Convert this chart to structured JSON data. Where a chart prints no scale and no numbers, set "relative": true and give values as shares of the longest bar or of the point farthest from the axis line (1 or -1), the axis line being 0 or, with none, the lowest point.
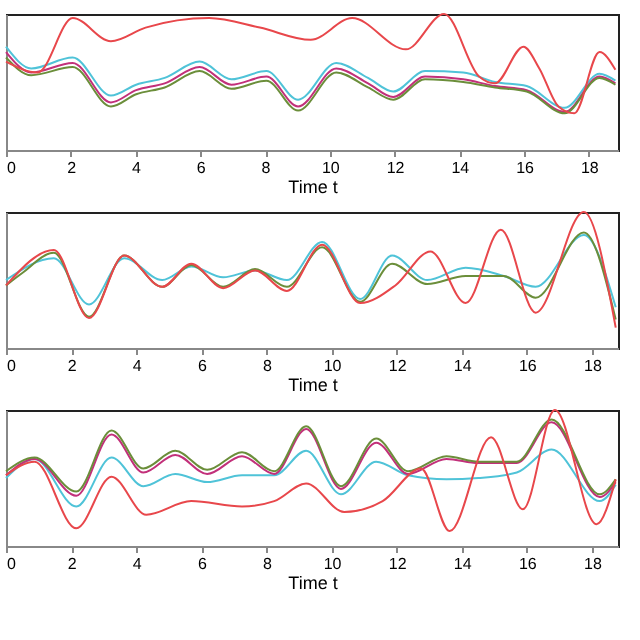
{
  "chart_data": [
    {
      "type": "line",
      "relative": true,
      "xlabel": "Time t",
      "xlim": [
        0,
        18.9
      ],
      "xticks": [
        0,
        2,
        4,
        6,
        8,
        10,
        12,
        14,
        16,
        18
      ],
      "grid": false,
      "legend": false,
      "series": [
        {
          "color": "#4fc3d8",
          "x": [
            0,
            0.78,
            2.06,
            3.24,
            4.02,
            4.9,
            5.98,
            6.96,
            8.04,
            9.02,
            10.2,
            11.18,
            11.96,
            12.94,
            14.12,
            15.1,
            16.08,
            17.25,
            18.33,
            18.82
          ],
          "values": [
            0.76,
            0.6,
            0.68,
            0.4,
            0.48,
            0.53,
            0.65,
            0.52,
            0.58,
            0.37,
            0.64,
            0.53,
            0.43,
            0.58,
            0.57,
            0.5,
            0.47,
            0.31,
            0.56,
            0.51
          ]
        },
        {
          "color": "#c2307a",
          "x": [
            0,
            0.78,
            2.06,
            3.24,
            4.02,
            4.9,
            5.98,
            6.96,
            8.04,
            9.02,
            10.2,
            11.18,
            11.96,
            12.94,
            14.12,
            15.1,
            16.08,
            17.25,
            18.33,
            18.82
          ],
          "values": [
            0.72,
            0.57,
            0.64,
            0.35,
            0.44,
            0.49,
            0.61,
            0.48,
            0.54,
            0.32,
            0.6,
            0.49,
            0.39,
            0.54,
            0.52,
            0.47,
            0.44,
            0.28,
            0.54,
            0.49
          ]
        },
        {
          "color": "#6b8e3a",
          "x": [
            0,
            0.78,
            2.06,
            3.24,
            4.02,
            4.9,
            5.98,
            6.96,
            8.04,
            9.02,
            10.2,
            11.18,
            11.96,
            12.94,
            14.12,
            15.1,
            16.08,
            17.25,
            18.33,
            18.82
          ],
          "values": [
            0.68,
            0.55,
            0.61,
            0.32,
            0.41,
            0.46,
            0.58,
            0.45,
            0.51,
            0.29,
            0.57,
            0.46,
            0.37,
            0.52,
            0.5,
            0.46,
            0.43,
            0.27,
            0.53,
            0.48
          ]
        },
        {
          "color": "#e8474b",
          "x": [
            0,
            0.98,
            2.06,
            3.24,
            4.31,
            6.27,
            7.84,
            9.41,
            10.69,
            12.35,
            13.53,
            14.61,
            15.1,
            15.98,
            16.47,
            17.06,
            17.55,
            18.33,
            18.82
          ],
          "values": [
            0.65,
            0.57,
            0.97,
            0.8,
            0.9,
            0.97,
            0.9,
            0.81,
            0.97,
            0.74,
            1.0,
            0.54,
            0.49,
            0.76,
            0.6,
            0.32,
            0.27,
            0.72,
            0.59
          ]
        }
      ]
    },
    {
      "type": "line",
      "relative": true,
      "xlabel": "Time t",
      "xlim": [
        0,
        18.8
      ],
      "xticks": [
        0,
        2,
        4,
        6,
        8,
        10,
        12,
        14,
        16,
        18
      ],
      "grid": false,
      "legend": false,
      "series": [
        {
          "color": "#4fc3d8",
          "x": [
            0,
            1.47,
            2.55,
            3.63,
            4.8,
            5.69,
            6.67,
            7.65,
            8.63,
            9.71,
            10.88,
            11.86,
            12.94,
            14.12,
            15.29,
            16.27,
            17.75,
            18.73
          ],
          "values": [
            0.5,
            0.66,
            0.32,
            0.66,
            0.5,
            0.6,
            0.52,
            0.57,
            0.5,
            0.78,
            0.36,
            0.68,
            0.5,
            0.59,
            0.53,
            0.45,
            0.83,
            0.3
          ]
        },
        {
          "color": "#6b8e3a",
          "x": [
            0,
            0.49,
            1.47,
            2.55,
            3.63,
            4.8,
            5.69,
            6.67,
            7.65,
            8.63,
            9.71,
            10.88,
            11.86,
            12.94,
            14.12,
            15.29,
            16.27,
            17.75,
            18.73
          ],
          "values": [
            0.46,
            0.55,
            0.7,
            0.23,
            0.68,
            0.45,
            0.61,
            0.45,
            0.58,
            0.45,
            0.74,
            0.34,
            0.62,
            0.47,
            0.53,
            0.53,
            0.37,
            0.85,
            0.21
          ]
        },
        {
          "color": "#e8474b",
          "x": [
            0,
            1.47,
            2.55,
            3.63,
            4.8,
            5.69,
            6.67,
            7.65,
            8.63,
            9.71,
            10.88,
            11.96,
            13.04,
            14.12,
            15.2,
            16.27,
            17.75,
            18.73
          ],
          "values": [
            0.46,
            0.72,
            0.22,
            0.68,
            0.45,
            0.62,
            0.44,
            0.57,
            0.42,
            0.76,
            0.33,
            0.46,
            0.71,
            0.33,
            0.87,
            0.26,
            1.0,
            0.15
          ]
        }
      ]
    },
    {
      "type": "line",
      "relative": true,
      "xlabel": "Time t",
      "xlim": [
        0,
        18.8
      ],
      "xticks": [
        0,
        2,
        4,
        6,
        8,
        10,
        12,
        14,
        16,
        18
      ],
      "grid": false,
      "legend": false,
      "series": [
        {
          "color": "#4fc3d8",
          "x": [
            0,
            0.88,
            2.16,
            3.24,
            4.22,
            5.2,
            6.18,
            7.25,
            8.24,
            9.22,
            10.29,
            11.37,
            12.35,
            13.53,
            14.51,
            15.69,
            16.76,
            18.24,
            18.73
          ],
          "values": [
            0.5,
            0.64,
            0.29,
            0.65,
            0.44,
            0.53,
            0.47,
            0.52,
            0.52,
            0.7,
            0.38,
            0.62,
            0.52,
            0.49,
            0.5,
            0.54,
            0.71,
            0.33,
            0.45
          ]
        },
        {
          "color": "#c2307a",
          "x": [
            0,
            0.88,
            2.16,
            3.24,
            4.22,
            5.2,
            6.18,
            7.25,
            8.24,
            9.22,
            10.29,
            11.37,
            12.35,
            13.53,
            14.51,
            15.69,
            16.76,
            18.24,
            18.73
          ],
          "values": [
            0.52,
            0.64,
            0.37,
            0.82,
            0.54,
            0.67,
            0.53,
            0.66,
            0.53,
            0.86,
            0.42,
            0.76,
            0.53,
            0.64,
            0.61,
            0.61,
            0.91,
            0.36,
            0.47
          ]
        },
        {
          "color": "#6b8e3a",
          "x": [
            0,
            0.88,
            2.16,
            3.24,
            4.22,
            5.2,
            6.18,
            7.25,
            8.24,
            9.22,
            10.29,
            11.37,
            12.35,
            13.53,
            14.51,
            15.69,
            16.76,
            18.24,
            18.73
          ],
          "values": [
            0.55,
            0.65,
            0.4,
            0.85,
            0.57,
            0.7,
            0.56,
            0.69,
            0.55,
            0.88,
            0.44,
            0.79,
            0.55,
            0.66,
            0.62,
            0.62,
            0.93,
            0.38,
            0.49
          ]
        },
        {
          "color": "#e8474b",
          "x": [
            0,
            0.88,
            2.16,
            3.24,
            4.31,
            5.69,
            7.25,
            8.24,
            9.22,
            10.39,
            11.57,
            12.75,
            13.63,
            14.9,
            15.88,
            16.86,
            18.14,
            18.73
          ],
          "values": [
            0.52,
            0.62,
            0.13,
            0.51,
            0.23,
            0.33,
            0.29,
            0.33,
            0.46,
            0.25,
            0.33,
            0.57,
            0.11,
            0.8,
            0.27,
            1.0,
            0.16,
            0.49
          ]
        }
      ]
    }
  ]
}
